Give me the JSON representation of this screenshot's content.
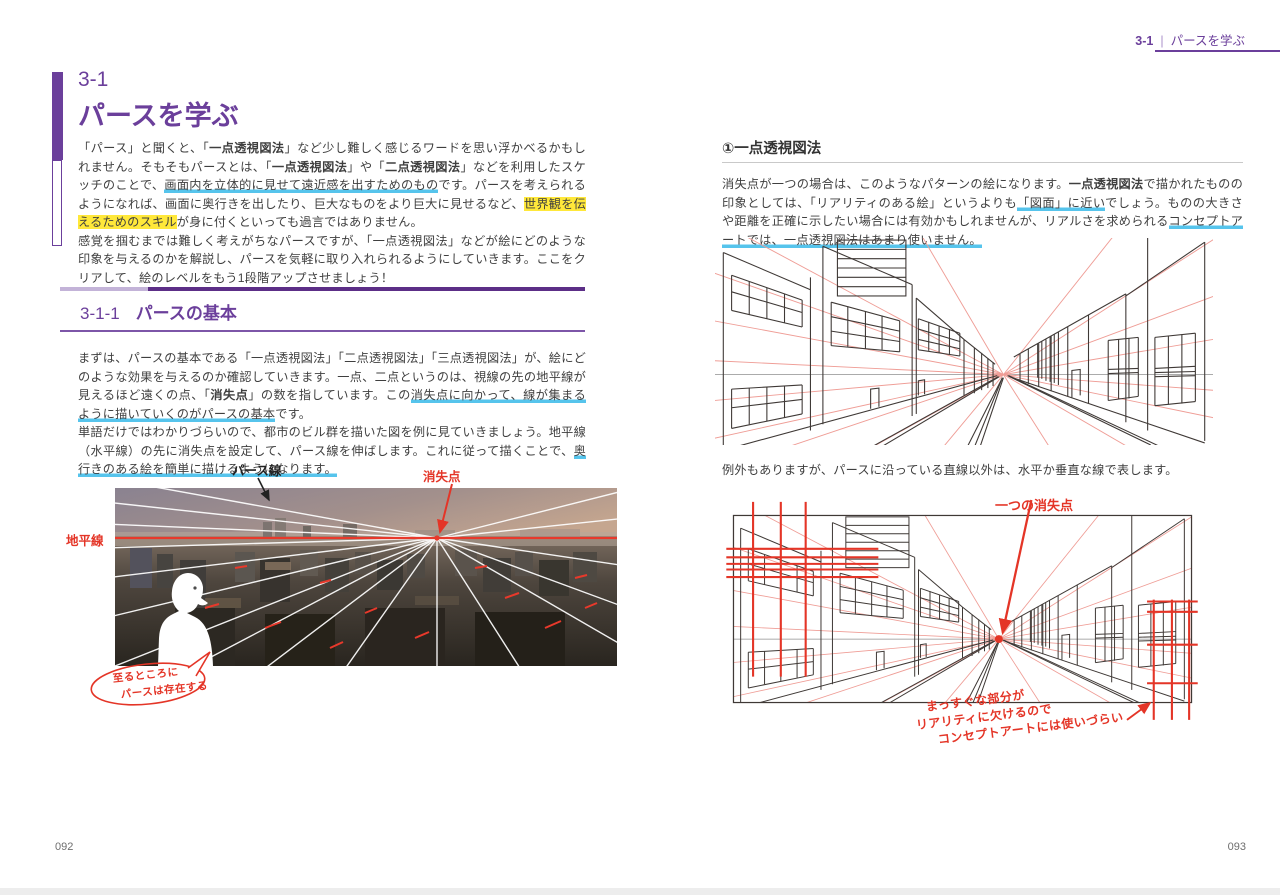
{
  "page_header": {
    "section_no": "3-1",
    "separator": "|",
    "title": "パースを学ぶ"
  },
  "left_page": {
    "chapter_no": "3-1",
    "chapter_title": "パースを学ぶ",
    "intro_p1": [
      {
        "t": "「パース」と聞くと、「"
      },
      {
        "t": "一点透視図法",
        "c": "b"
      },
      {
        "t": "」など少し難しく感じるワードを思い浮かべるかもしれません。そもそもパースとは、「"
      },
      {
        "t": "一点透視図法",
        "c": "b"
      },
      {
        "t": "」や「"
      },
      {
        "t": "二点透視図法",
        "c": "b"
      },
      {
        "t": "」などを利用したスケッチのことで、"
      },
      {
        "t": "画面内を立体的に見せて遠近感を出すためのもの",
        "c": "u"
      },
      {
        "t": "です。パースを考えられるようになれば、画面に奥行きを出したり、巨大なものをより巨大に見せるなど、"
      },
      {
        "t": "世界観を伝えるためのスキル",
        "c": "m"
      },
      {
        "t": "が身に付くといっても過言ではありません。"
      }
    ],
    "intro_p2": [
      {
        "t": "感覚を掴むまでは難しく考えがちなパースですが、「一点透視図法」などが絵にどのような印象を与えるのかを解説し、パースを気軽に取り入れられるようにしていきます。ここをクリアして、絵のレベルをもう1段階アップさせましょう！"
      }
    ],
    "section": {
      "no": "3-1-1",
      "title": "パースの基本"
    },
    "body_p1": [
      {
        "t": "まずは、パースの基本である「一点透視図法」「二点透視図法」「三点透視図法」が、絵にどのような効果を与えるのか確認していきます。一点、二点というのは、視線の先の地平線が見えるほど遠くの点、「"
      },
      {
        "t": "消失点",
        "c": "b"
      },
      {
        "t": "」の数を指しています。この"
      },
      {
        "t": "消失点に向かって、線が集まるように描いていくのがパースの基本",
        "c": "u"
      },
      {
        "t": "です。"
      }
    ],
    "body_p2": [
      {
        "t": "単語だけではわかりづらいので、都市のビル群を描いた図を例に見ていきましょう。地平線（水平線）の先に消失点を設定して、パース線を伸ばします。これに従って描くことで、"
      },
      {
        "t": "奥行きのある絵を簡単に描けるようになります。",
        "c": "u"
      }
    ],
    "figure": {
      "label_pers_line": "パース線",
      "label_vanishing_point": "消失点",
      "label_horizon": "地平線",
      "bubble_line1": "至るところに",
      "bubble_line2": "パースは存在する"
    },
    "page_number": "092"
  },
  "right_page": {
    "heading": "①一点透視図法",
    "body_p1": [
      {
        "t": "消失点が一つの場合は、このようなパターンの絵になります。"
      },
      {
        "t": "一点透視図法",
        "c": "b"
      },
      {
        "t": "で描かれたものの印象としては、「リアリティのある絵」というよりも"
      },
      {
        "t": "「図面」に近い",
        "c": "u"
      },
      {
        "t": "でしょう。ものの大きさや距離を正確に示したい場合には有効かもしれませんが、リアルさを求められる"
      },
      {
        "t": "コンセプトアートでは、一点透視図法はあまり使いません。",
        "c": "u"
      }
    ],
    "caption_between": "例外もありますが、パースに沿っている直線以外は、水平か垂直な線で表します。",
    "figure2": {
      "label_vp": "一つの消失点",
      "note_line1": "まっすぐな部分が",
      "note_line2": "リアリティに欠けるので",
      "note_line3": "コンセプトアートには使いづらい"
    },
    "page_number": "093"
  },
  "colors": {
    "accent_purple": "#6b3f9b",
    "rule_purple_dark": "#5c2e87",
    "annotation_red": "#e43527",
    "highlight_cyan": "#56c4ec",
    "highlight_yellow": "#ffe83a"
  }
}
